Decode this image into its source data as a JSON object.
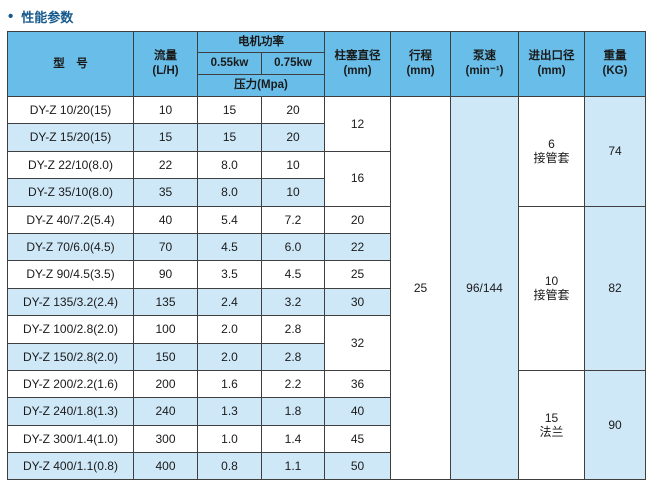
{
  "title": {
    "bullet": "•",
    "text": "性能参数"
  },
  "colors": {
    "header_bg": "#69bee9",
    "stripe_bg": "#cfe8f7",
    "border": "#3f3f3f",
    "title_color": "#17598c"
  },
  "table": {
    "headers": {
      "model": "型　号",
      "flow": "流量\n(L/H)",
      "motor_power": "电机功率",
      "power_055": "0.55kw",
      "power_075": "0.75kw",
      "pressure": "压力(Mpa)",
      "plunger_diameter": "柱塞直径\n(mm)",
      "stroke": "行程\n(mm)",
      "pump_speed": "泵速\n(min⁻¹)",
      "inlet_outlet": "进出口径\n(mm)",
      "weight": "重量\n(KG)"
    },
    "rows": [
      {
        "model": "DY-Z 10/20(15)",
        "flow": "10",
        "p055": "15",
        "p075": "20"
      },
      {
        "model": "DY-Z 15/20(15)",
        "flow": "15",
        "p055": "15",
        "p075": "20"
      },
      {
        "model": "DY-Z 22/10(8.0)",
        "flow": "22",
        "p055": "8.0",
        "p075": "10"
      },
      {
        "model": "DY-Z 35/10(8.0)",
        "flow": "35",
        "p055": "8.0",
        "p075": "10"
      },
      {
        "model": "DY-Z 40/7.2(5.4)",
        "flow": "40",
        "p055": "5.4",
        "p075": "7.2"
      },
      {
        "model": "DY-Z 70/6.0(4.5)",
        "flow": "70",
        "p055": "4.5",
        "p075": "6.0"
      },
      {
        "model": "DY-Z 90/4.5(3.5)",
        "flow": "90",
        "p055": "3.5",
        "p075": "4.5"
      },
      {
        "model": "DY-Z 135/3.2(2.4)",
        "flow": "135",
        "p055": "2.4",
        "p075": "3.2"
      },
      {
        "model": "DY-Z 100/2.8(2.0)",
        "flow": "100",
        "p055": "2.0",
        "p075": "2.8"
      },
      {
        "model": "DY-Z 150/2.8(2.0)",
        "flow": "150",
        "p055": "2.0",
        "p075": "2.8"
      },
      {
        "model": "DY-Z 200/2.2(1.6)",
        "flow": "200",
        "p055": "1.6",
        "p075": "2.2"
      },
      {
        "model": "DY-Z 240/1.8(1.3)",
        "flow": "240",
        "p055": "1.3",
        "p075": "1.8"
      },
      {
        "model": "DY-Z 300/1.4(1.0)",
        "flow": "300",
        "p055": "1.0",
        "p075": "1.4"
      },
      {
        "model": "DY-Z 400/1.1(0.8)",
        "flow": "400",
        "p055": "0.8",
        "p075": "1.1"
      }
    ],
    "plunger_cells": [
      {
        "row": 0,
        "span": 2,
        "value": "12"
      },
      {
        "row": 2,
        "span": 2,
        "value": "16"
      },
      {
        "row": 4,
        "span": 1,
        "value": "20"
      },
      {
        "row": 5,
        "span": 1,
        "value": "22"
      },
      {
        "row": 6,
        "span": 1,
        "value": "25"
      },
      {
        "row": 7,
        "span": 1,
        "value": "30"
      },
      {
        "row": 8,
        "span": 2,
        "value": "32"
      },
      {
        "row": 10,
        "span": 1,
        "value": "36"
      },
      {
        "row": 11,
        "span": 1,
        "value": "40"
      },
      {
        "row": 12,
        "span": 1,
        "value": "45"
      },
      {
        "row": 13,
        "span": 1,
        "value": "50"
      }
    ],
    "stroke_cell": {
      "row": 0,
      "span": 14,
      "value": "25"
    },
    "pump_speed_cell": {
      "row": 0,
      "span": 14,
      "value": "96/144"
    },
    "inlet_outlet_cells": [
      {
        "row": 0,
        "span": 4,
        "value": "6\n接管套"
      },
      {
        "row": 4,
        "span": 6,
        "value": "10\n接管套"
      },
      {
        "row": 10,
        "span": 4,
        "value": "15\n法兰"
      }
    ],
    "weight_cells": [
      {
        "row": 0,
        "span": 4,
        "value": "74"
      },
      {
        "row": 4,
        "span": 6,
        "value": "82"
      },
      {
        "row": 10,
        "span": 4,
        "value": "90"
      }
    ]
  }
}
